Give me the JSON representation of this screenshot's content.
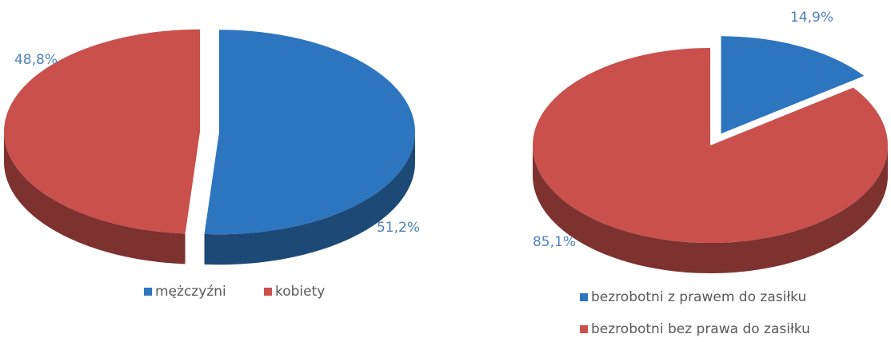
{
  "chart_data": [
    {
      "type": "pie",
      "categories": [
        "mężczyźni",
        "kobiety"
      ],
      "values": [
        51.2,
        48.8
      ],
      "value_labels": [
        "51,2%",
        "48,8%"
      ],
      "colors": [
        "#2e75c0",
        "#c9504c"
      ]
    },
    {
      "type": "pie",
      "categories": [
        "bezrobotni z prawem do zasiłku",
        "bezrobotni bez prawa do zasiłku"
      ],
      "values": [
        14.9,
        85.1
      ],
      "value_labels": [
        "14,9%",
        "85,1%"
      ],
      "colors": [
        "#2e75c0",
        "#c9504c"
      ]
    }
  ]
}
